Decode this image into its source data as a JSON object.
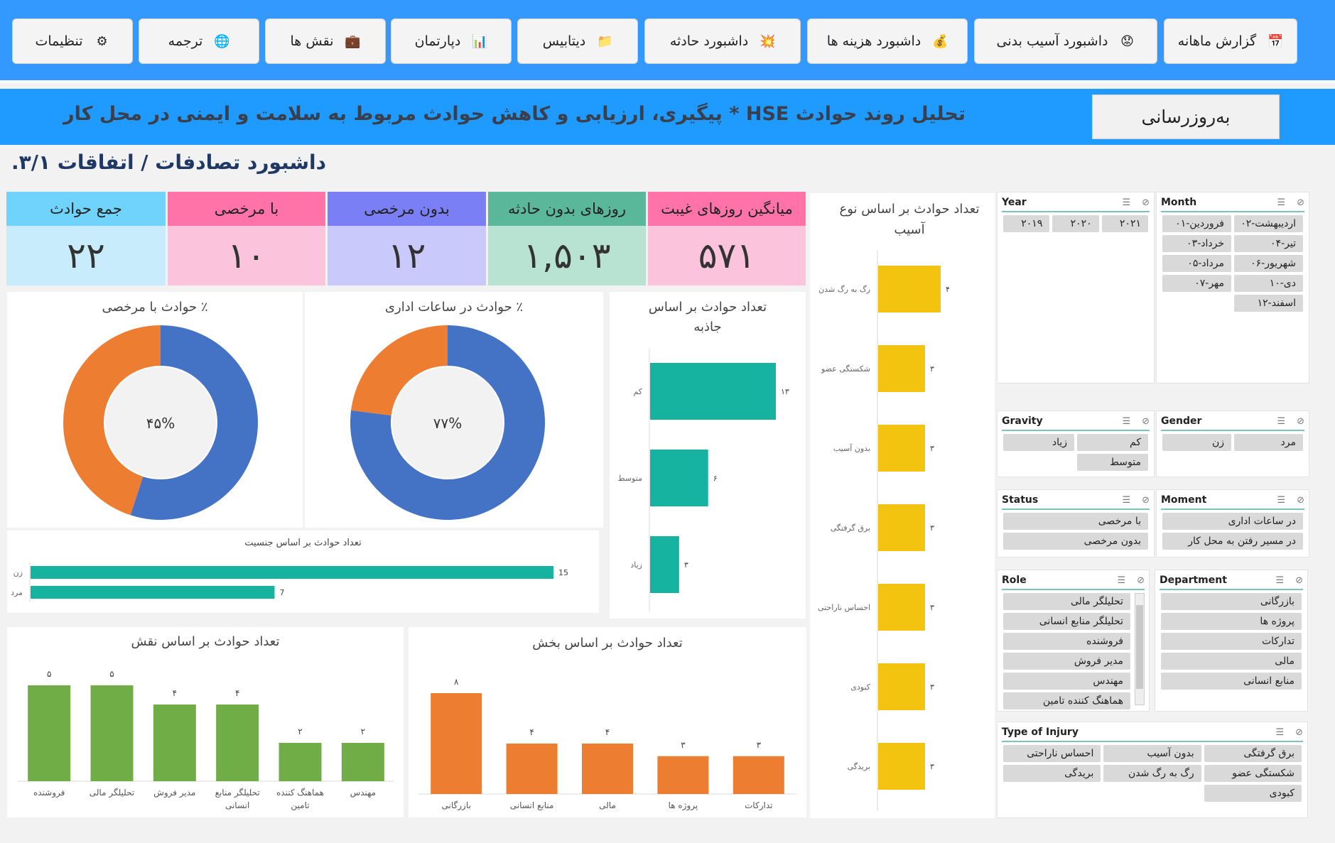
{
  "nav": [
    {
      "label": "گزارش ماهانه",
      "icon": "calendar-icon",
      "glyph": "📅"
    },
    {
      "label": "داشبورد آسیب بدنی",
      "icon": "sad-face-icon",
      "glyph": "😟"
    },
    {
      "label": "داشبورد هزینه ها",
      "icon": "money-bag-icon",
      "glyph": "💰"
    },
    {
      "label": "داشبورد حادثه",
      "icon": "explosion-icon",
      "glyph": "💥"
    },
    {
      "label": "دیتابیس",
      "icon": "folder-icon",
      "glyph": "📁"
    },
    {
      "label": "دپارتمان",
      "icon": "spreadsheet-icon",
      "glyph": "📊"
    },
    {
      "label": "نقش ها",
      "icon": "briefcase-icon",
      "glyph": "💼"
    },
    {
      "label": "ترجمه",
      "icon": "globe-icon",
      "glyph": "🌐"
    },
    {
      "label": "تنظیمات",
      "icon": "gear-icon",
      "glyph": "⚙"
    }
  ],
  "banner": {
    "title": "تحلیل روند حوادث HSE * پیگیری، ارزیابی و کاهش حوادث مربوط به سلامت و ایمنی در محل کار",
    "refresh_label": "به‌روزرسانی"
  },
  "page_title": "داشبورد تصادفات / اتفاقات ۳/۱.",
  "kpis": [
    {
      "label": "جمع حوادث",
      "value": "۲۲",
      "head_color": "#6fd3fb",
      "body_color": "#c9ecfc"
    },
    {
      "label": "با مرخصی",
      "value": "۱۰",
      "head_color": "#ff73a8",
      "body_color": "#fbc4dc"
    },
    {
      "label": "بدون مرخصی",
      "value": "۱۲",
      "head_color": "#7b7ff5",
      "body_color": "#c9cafb"
    },
    {
      "label": "روزهای بدون حادثه",
      "value": "۱,۵۰۳",
      "head_color": "#5bb799",
      "body_color": "#b8e3d3"
    },
    {
      "label": "میانگین روزهای غیبت",
      "value": "۵۷۱",
      "head_color": "#ff73a8",
      "body_color": "#fbc4dc"
    }
  ],
  "chart_data": [
    {
      "type": "pie",
      "title": "٪ حوادث با مرخصی",
      "center_label": "۴۵%",
      "slices": [
        55,
        45
      ],
      "colors": [
        "#4472c4",
        "#ed7d31"
      ]
    },
    {
      "type": "pie",
      "title": "٪ حوادث در ساعات اداری",
      "center_label": "۷۷%",
      "slices": [
        77,
        23
      ],
      "colors": [
        "#4472c4",
        "#ed7d31"
      ]
    },
    {
      "type": "bar",
      "orientation": "horizontal",
      "title": "تعداد حوادث بر اساس جاذبه",
      "categories": [
        "کم",
        "متوسط",
        "زیاد"
      ],
      "values": [
        13,
        6,
        3
      ],
      "value_labels": [
        "۱۳",
        "۶",
        "۳"
      ],
      "color": "#15b3a0"
    },
    {
      "type": "bar",
      "orientation": "horizontal",
      "title": "تعداد حوادث بر اساس جنسیت",
      "categories": [
        "زن",
        "مرد"
      ],
      "values": [
        15,
        7
      ],
      "value_labels": [
        "15",
        "7"
      ],
      "color": "#15b3a0"
    },
    {
      "type": "bar",
      "orientation": "horizontal",
      "title": "تعداد حوادث بر اساس نوع آسیب",
      "categories": [
        "رگ به رگ شدن",
        "شکستگی عضو",
        "بدون آسیب",
        "برق گرفتگی",
        "احساس ناراحتی",
        "کبودی",
        "بریدگی"
      ],
      "values": [
        4,
        3,
        3,
        3,
        3,
        3,
        3
      ],
      "value_labels": [
        "۴",
        "۳",
        "۳",
        "۳",
        "۳",
        "۳",
        "۳"
      ],
      "color": "#f2c40f"
    },
    {
      "type": "bar",
      "title": "تعداد حوادث بر اساس نقش",
      "categories": [
        "فروشنده",
        "تحلیلگر مالی",
        "مدیر فروش",
        "تحلیلگر منابع انسانی",
        "هماهنگ کننده تامین",
        "مهندس"
      ],
      "values": [
        5,
        5,
        4,
        4,
        2,
        2
      ],
      "value_labels": [
        "۵",
        "۵",
        "۴",
        "۴",
        "۲",
        "۲"
      ],
      "color": "#70ad47"
    },
    {
      "type": "bar",
      "title": "تعداد حوادث بر اساس بخش",
      "categories": [
        "بازرگانی",
        "منابع انسانی",
        "مالی",
        "پروژه ها",
        "تدارکات"
      ],
      "values": [
        8,
        4,
        4,
        3,
        3
      ],
      "value_labels": [
        "۸",
        "۴",
        "۴",
        "۳",
        "۳"
      ],
      "color": "#ed7d31"
    }
  ],
  "slicers": {
    "month": {
      "title": "Month",
      "items": [
        "اردیبهشت-۰۲",
        "فروردین-۰۱",
        "تیر-۰۴",
        "خرداد-۰۳",
        "شهریور-۰۶",
        "مرداد-۰۵",
        "دی-۱۰",
        "مهر-۰۷",
        "اسفند-۱۲"
      ]
    },
    "year": {
      "title": "Year",
      "items": [
        "۲۰۲۱",
        "۲۰۲۰",
        "۲۰۱۹"
      ]
    },
    "gender": {
      "title": "Gender",
      "items": [
        "مرد",
        "زن"
      ]
    },
    "gravity": {
      "title": "Gravity",
      "items": [
        "کم",
        "زیاد",
        "متوسط"
      ]
    },
    "moment": {
      "title": "Moment",
      "items": [
        "در ساعات اداری",
        "در مسیر رفتن به محل کار"
      ]
    },
    "status": {
      "title": "Status",
      "items": [
        "با مرخصی",
        "بدون مرخصی"
      ]
    },
    "department": {
      "title": "Department",
      "items": [
        "بازرگانی",
        "پروژه ها",
        "تدارکات",
        "مالی",
        "منابع انسانی"
      ]
    },
    "role": {
      "title": "Role",
      "items": [
        "تحلیلگر مالی",
        "تحلیلگر منابع انسانی",
        "فروشنده",
        "مدیر فروش",
        "مهندس",
        "هماهنگ کننده تامین"
      ]
    },
    "injury": {
      "title": "Type of Injury",
      "items": [
        "برق گرفتگی",
        "بدون آسیب",
        "احساس ناراحتی",
        "شکستگی عضو",
        "رگ به رگ شدن",
        "بریدگی",
        "کبودی"
      ]
    }
  }
}
